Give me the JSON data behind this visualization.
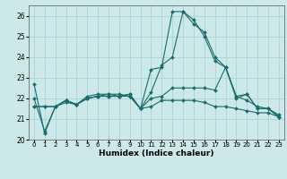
{
  "xlabel": "Humidex (Indice chaleur)",
  "ylabel": "",
  "bg_color": "#cce8e8",
  "grid_color": "#aad4d4",
  "line_color": "#1a6b6b",
  "xlim": [
    -0.5,
    23.5
  ],
  "ylim": [
    20.0,
    26.5
  ],
  "yticks": [
    20,
    21,
    22,
    23,
    24,
    25,
    26
  ],
  "xticks": [
    0,
    1,
    2,
    3,
    4,
    5,
    6,
    7,
    8,
    9,
    10,
    11,
    12,
    13,
    14,
    15,
    16,
    17,
    18,
    19,
    20,
    21,
    22,
    23
  ],
  "series": [
    {
      "x": [
        0,
        1,
        2,
        3,
        4,
        5,
        6,
        7,
        8,
        9,
        10,
        11,
        12,
        13,
        14,
        15,
        16,
        17,
        18,
        19,
        20,
        21,
        22,
        23
      ],
      "y": [
        22.7,
        20.3,
        21.6,
        21.9,
        21.7,
        22.1,
        22.2,
        22.2,
        22.2,
        22.1,
        21.5,
        23.4,
        23.5,
        26.2,
        26.2,
        25.6,
        25.2,
        24.0,
        23.5,
        22.0,
        22.2,
        21.5,
        21.5,
        21.1
      ]
    },
    {
      "x": [
        0,
        1,
        2,
        3,
        4,
        5,
        6,
        7,
        8,
        9,
        10,
        11,
        12,
        13,
        14,
        15,
        16,
        17,
        18,
        19,
        20,
        21,
        22,
        23
      ],
      "y": [
        22.0,
        20.4,
        21.6,
        21.9,
        21.7,
        22.0,
        22.1,
        22.2,
        22.1,
        22.2,
        21.5,
        22.3,
        23.6,
        24.0,
        26.2,
        25.8,
        25.0,
        23.8,
        23.5,
        22.1,
        21.9,
        21.6,
        21.5,
        21.2
      ]
    },
    {
      "x": [
        0,
        1,
        2,
        3,
        4,
        5,
        6,
        7,
        8,
        9,
        10,
        11,
        12,
        13,
        14,
        15,
        16,
        17,
        18,
        19,
        20,
        21,
        22,
        23
      ],
      "y": [
        21.6,
        21.6,
        21.6,
        21.9,
        21.7,
        22.0,
        22.1,
        22.1,
        22.1,
        22.2,
        21.5,
        22.0,
        22.1,
        22.5,
        22.5,
        22.5,
        22.5,
        22.4,
        23.5,
        22.1,
        22.2,
        21.5,
        21.5,
        21.1
      ]
    },
    {
      "x": [
        0,
        1,
        2,
        3,
        4,
        5,
        6,
        7,
        8,
        9,
        10,
        11,
        12,
        13,
        14,
        15,
        16,
        17,
        18,
        19,
        20,
        21,
        22,
        23
      ],
      "y": [
        21.6,
        21.6,
        21.6,
        21.8,
        21.7,
        22.0,
        22.1,
        22.1,
        22.1,
        22.1,
        21.5,
        21.6,
        21.9,
        21.9,
        21.9,
        21.9,
        21.8,
        21.6,
        21.6,
        21.5,
        21.4,
        21.3,
        21.3,
        21.1
      ]
    }
  ]
}
